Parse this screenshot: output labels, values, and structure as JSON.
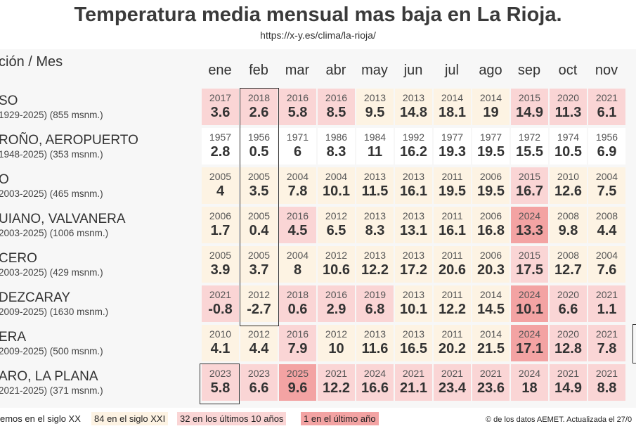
{
  "title": "Temperatura media mensual mas baja en La Rioja.",
  "subtitle": "https://x-y.es/clima/la-rioja/",
  "header_label": "ción / Mes",
  "credit": "© de los datos AEMET. Actualizada el 27/0",
  "legend": [
    {
      "label": "emos en el siglo XX",
      "color": "#ffffff"
    },
    {
      "label": "84 en el siglo XXI",
      "color": "#fdf3e3"
    },
    {
      "label": "32 en los últimos 10 años",
      "color": "#fad5d5"
    },
    {
      "label": "1 en el último año",
      "color": "#f3a3a3"
    }
  ],
  "chart_data": {
    "type": "table",
    "columns": [
      "ene",
      "feb",
      "mar",
      "abr",
      "may",
      "jun",
      "jul",
      "ago",
      "sep",
      "oct",
      "nov"
    ],
    "rows": [
      {
        "name": "SO",
        "sub": "1929-2025) (855 msnm.)",
        "years": [
          "2017",
          "2018",
          "2016",
          "2016",
          "2013",
          "2013",
          "2014",
          "2014",
          "2015",
          "2020",
          "2021"
        ],
        "values": [
          "3.6",
          "2.6",
          "5.8",
          "8.5",
          "9.5",
          "14.8",
          "18.1",
          "19",
          "14.9",
          "11.3",
          "6.1"
        ],
        "cat": [
          2,
          2,
          2,
          2,
          1,
          1,
          1,
          1,
          2,
          2,
          2
        ]
      },
      {
        "name": "ROÑO, AEROPUERTO",
        "sub": "1948-2025) (353 msnm.)",
        "years": [
          "1957",
          "1956",
          "1971",
          "1986",
          "1984",
          "1992",
          "1977",
          "1977",
          "1972",
          "1974",
          "1956"
        ],
        "values": [
          "2.8",
          "0.5",
          "6",
          "8.3",
          "11",
          "16.2",
          "19.3",
          "19.5",
          "15.5",
          "10.5",
          "6.9"
        ],
        "cat": [
          0,
          0,
          0,
          0,
          0,
          0,
          0,
          0,
          0,
          0,
          0
        ]
      },
      {
        "name": "O",
        "sub": "2003-2025) (465 msnm.)",
        "years": [
          "2005",
          "2005",
          "2004",
          "2004",
          "2013",
          "2013",
          "2011",
          "2006",
          "2015",
          "2010",
          "2004"
        ],
        "values": [
          "4",
          "3.5",
          "7.8",
          "10.1",
          "11.5",
          "16.1",
          "19.5",
          "19.5",
          "16.7",
          "12.6",
          "7.5"
        ],
        "cat": [
          1,
          1,
          1,
          1,
          1,
          1,
          1,
          1,
          2,
          1,
          1
        ]
      },
      {
        "name": "UIANO, VALVANERA",
        "sub": "2003-2025) (1006 msnm.)",
        "years": [
          "2006",
          "2005",
          "2016",
          "2012",
          "2013",
          "2013",
          "2011",
          "2006",
          "2024",
          "2008",
          "2008"
        ],
        "values": [
          "1.7",
          "0.4",
          "4.5",
          "6.5",
          "8.3",
          "13.1",
          "16.1",
          "16.8",
          "13.3",
          "9.8",
          "4.4"
        ],
        "cat": [
          1,
          1,
          2,
          1,
          1,
          1,
          1,
          1,
          3,
          1,
          1
        ]
      },
      {
        "name": "CERO",
        "sub": "2003-2025) (429 msnm.)",
        "years": [
          "2005",
          "2005",
          "2004",
          "2012",
          "2013",
          "2013",
          "2011",
          "2006",
          "2015",
          "2008",
          "2004"
        ],
        "values": [
          "3.9",
          "3.7",
          "8",
          "10.6",
          "12.2",
          "17.2",
          "20.6",
          "20.3",
          "17.5",
          "12.7",
          "7.6"
        ],
        "cat": [
          1,
          1,
          1,
          1,
          1,
          1,
          1,
          1,
          2,
          1,
          1
        ]
      },
      {
        "name": "DEZCARAY",
        "sub": "2009-2025) (1630 msnm.)",
        "years": [
          "2021",
          "2012",
          "2018",
          "2016",
          "2019",
          "2013",
          "2011",
          "2014",
          "2024",
          "2020",
          "2021"
        ],
        "values": [
          "-0.8",
          "-2.7",
          "0.6",
          "2.9",
          "6.8",
          "10.1",
          "12.2",
          "14.5",
          "10.1",
          "6.6",
          "1.1"
        ],
        "cat": [
          2,
          1,
          2,
          2,
          2,
          1,
          1,
          1,
          3,
          2,
          2
        ]
      },
      {
        "name": "ERA",
        "sub": "2009-2025) (500 msnm.)",
        "years": [
          "2010",
          "2012",
          "2016",
          "2012",
          "2013",
          "2013",
          "2011",
          "2014",
          "2024",
          "2020",
          "2021"
        ],
        "values": [
          "4.1",
          "4.4",
          "7.9",
          "10",
          "11.6",
          "16.5",
          "20.2",
          "21.5",
          "17.1",
          "12.8",
          "7.8"
        ],
        "cat": [
          1,
          1,
          2,
          1,
          1,
          1,
          1,
          1,
          3,
          2,
          2
        ]
      },
      {
        "name": "ARO, LA PLANA",
        "sub": "2021-2025) (371 msnm.)",
        "years": [
          "2023",
          "2023",
          "2025",
          "2021",
          "2024",
          "2021",
          "2021",
          "2021",
          "2024",
          "2021",
          "2021"
        ],
        "values": [
          "5.8",
          "6.6",
          "9.6",
          "12.2",
          "16.6",
          "21.1",
          "23.4",
          "23.6",
          "18",
          "14.9",
          "8.8"
        ],
        "cat": [
          2,
          2,
          3,
          2,
          2,
          2,
          2,
          2,
          2,
          2,
          2
        ]
      }
    ]
  }
}
